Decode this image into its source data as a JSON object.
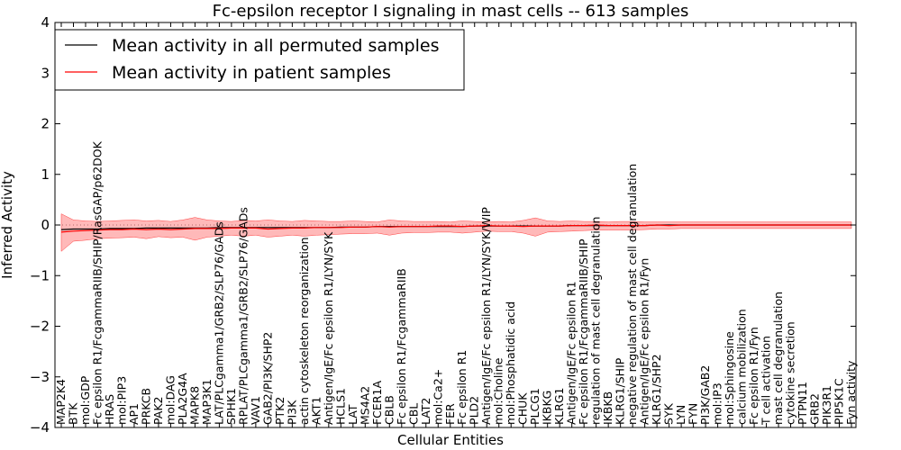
{
  "chart_data": {
    "type": "line",
    "title": "Fc-epsilon receptor I signaling in mast cells -- 613 samples",
    "xlabel": "Cellular Entities",
    "ylabel": "Inferred Activity",
    "ylim": [
      -4,
      4
    ],
    "yticks": [
      -4,
      -3,
      -2,
      -1,
      0,
      1,
      2,
      3,
      4
    ],
    "legend_position": "top-left",
    "categories": [
      "MAP2K4",
      "BTK",
      "mol:GDP",
      "Fc epsilon R1/FcgammaRIIB/SHIP/RasGAP/p62DOK",
      "HRAS",
      "mol:PIP3",
      "AP1",
      "PRKCB",
      "PAK2",
      "mol:DAG",
      "PLA2G4A",
      "MAPK8",
      "MAP3K1",
      "LAT/PLCgamma1/GRB2/SLP76/GADs",
      "SPHK1",
      "RPLAT/PLCgamma1/GRB2/SLP76/GADs",
      "VAV1",
      "GAB2/PI3K/SHP2",
      "PTK2",
      "PI3K",
      "actin cytoskeleton reorganization",
      "AKT1",
      "Antigen/IgE/Fc epsilon R1/LYN/SYK",
      "HCLS1",
      "LAT",
      "MS4A2",
      "FCER1A",
      "CBLB",
      "Fc epsilon R1/FcgammaRIIB",
      "CBL",
      "LAT2",
      "mol:Ca2+",
      "FER",
      "Fc epsilon R1",
      "PLD2",
      "Antigen/IgE/Fc epsilon R1/LYN/SYK/WIP",
      "mol:Choline",
      "mol:Phosphatidic acid",
      "CHUK",
      "PLCG1",
      "IKBKG",
      "KLRG1",
      "Antigen/IgE/Fc epsilon R1",
      "Fc epsilon R1/FcgammaRIIB/SHIP",
      "regulation of mast cell degranulation",
      "IKBKB",
      "KLRG1/SHIP",
      "negative regulation of mast cell degranulation",
      "Antigen/IgE/Fc epsilon R1/Fyn",
      "KLRG1/SHP2",
      "SYK",
      "LYN",
      "FYN",
      "PI3K/GAB2",
      "mol:IP3",
      "mol:Sphingosine",
      "calcium mobilization",
      "Fc epsilon R1/Fyn",
      "T cell activation",
      "mast cell degranulation",
      "cytokine secretion",
      "PTPN11",
      "GRB2",
      "PIK3R1",
      "PIP5K1C",
      "Fyn activity"
    ],
    "series": [
      {
        "name": "Mean activity in all permuted samples",
        "color": "#000000",
        "values": [
          -0.09,
          -0.08,
          -0.08,
          -0.08,
          -0.07,
          -0.07,
          -0.07,
          -0.06,
          -0.06,
          -0.06,
          -0.06,
          -0.06,
          -0.06,
          -0.05,
          -0.05,
          -0.05,
          -0.05,
          -0.05,
          -0.05,
          -0.05,
          -0.05,
          -0.05,
          -0.05,
          -0.04,
          -0.04,
          -0.04,
          -0.03,
          -0.03,
          -0.03,
          -0.03,
          -0.03,
          -0.03,
          -0.03,
          -0.03,
          -0.02,
          -0.02,
          -0.02,
          -0.02,
          -0.02,
          -0.02,
          -0.02,
          -0.02,
          -0.01,
          -0.01,
          -0.01,
          -0.01,
          -0.01,
          -0.01,
          -0.01,
          0.0,
          0.0,
          0.0,
          0.0,
          0.0,
          0.0,
          0.0,
          0.0,
          0.0,
          0.0,
          0.0,
          0.0,
          0.0,
          0.0,
          0.0,
          0.0,
          0.0
        ]
      },
      {
        "name": "Mean activity in patient samples",
        "color": "#ff0000",
        "values": [
          -0.14,
          -0.12,
          -0.11,
          -0.1,
          -0.09,
          -0.09,
          -0.08,
          -0.09,
          -0.08,
          -0.09,
          -0.08,
          -0.07,
          -0.07,
          -0.07,
          -0.06,
          -0.06,
          -0.06,
          -0.08,
          -0.07,
          -0.06,
          -0.06,
          -0.05,
          -0.05,
          -0.05,
          -0.04,
          -0.04,
          -0.03,
          -0.04,
          -0.03,
          -0.03,
          -0.03,
          -0.02,
          -0.02,
          -0.03,
          -0.02,
          -0.01,
          -0.02,
          -0.02,
          -0.03,
          -0.02,
          -0.02,
          -0.02,
          -0.01,
          -0.01,
          0.0,
          -0.01,
          -0.01,
          -0.01,
          -0.01,
          0.0,
          -0.01,
          0.0,
          0.0,
          0.0,
          0.0,
          0.0,
          0.0,
          0.0,
          0.0,
          0.0,
          0.0,
          0.0,
          0.0,
          0.0,
          0.0,
          0.0
        ],
        "band_upper": [
          0.22,
          0.1,
          0.08,
          0.07,
          0.08,
          0.09,
          0.1,
          0.08,
          0.09,
          0.07,
          0.1,
          0.15,
          0.1,
          0.08,
          0.07,
          0.09,
          0.08,
          0.1,
          0.08,
          0.07,
          0.09,
          0.08,
          0.07,
          0.07,
          0.08,
          0.07,
          0.06,
          0.1,
          0.08,
          0.07,
          0.07,
          0.07,
          0.06,
          0.08,
          0.07,
          0.06,
          0.07,
          0.06,
          0.09,
          0.14,
          0.08,
          0.07,
          0.08,
          0.07,
          0.07,
          0.06,
          0.07,
          0.07,
          0.06,
          0.06,
          0.06,
          0.06,
          0.06,
          0.06,
          0.06,
          0.06,
          0.06,
          0.06,
          0.06,
          0.06,
          0.06,
          0.06,
          0.06,
          0.06,
          0.06,
          0.06
        ],
        "band_lower": [
          -0.52,
          -0.32,
          -0.3,
          -0.27,
          -0.26,
          -0.25,
          -0.24,
          -0.27,
          -0.23,
          -0.25,
          -0.24,
          -0.3,
          -0.24,
          -0.22,
          -0.2,
          -0.22,
          -0.2,
          -0.24,
          -0.22,
          -0.2,
          -0.22,
          -0.2,
          -0.19,
          -0.18,
          -0.17,
          -0.17,
          -0.16,
          -0.2,
          -0.16,
          -0.15,
          -0.15,
          -0.14,
          -0.14,
          -0.16,
          -0.14,
          -0.12,
          -0.13,
          -0.13,
          -0.16,
          -0.22,
          -0.14,
          -0.13,
          -0.12,
          -0.11,
          -0.1,
          -0.1,
          -0.1,
          -0.1,
          -0.09,
          -0.08,
          -0.08,
          -0.07,
          -0.07,
          -0.07,
          -0.07,
          -0.07,
          -0.07,
          -0.07,
          -0.07,
          -0.07,
          -0.07,
          -0.07,
          -0.07,
          -0.07,
          -0.07,
          -0.07
        ]
      }
    ]
  }
}
